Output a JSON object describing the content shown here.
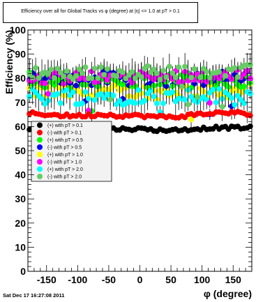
{
  "title": "Efficiency over all for Global Tracks vs φ (degree) at |η| <= 1.0 at pT > 0.1",
  "timestamp": "Sat Dec 17 16:27:08 2011",
  "chart_data": {
    "type": "scatter",
    "xlabel": "φ (degree)",
    "ylabel": "Efficiency (%)",
    "xlim": [
      -180,
      180
    ],
    "ylim": [
      0,
      100
    ],
    "x_ticks": [
      -150,
      -100,
      -50,
      0,
      50,
      100,
      150
    ],
    "y_ticks": [
      0,
      10,
      20,
      30,
      40,
      50,
      60,
      70,
      80,
      90,
      100
    ],
    "grid": false,
    "legend_position": "middle-left",
    "series": [
      {
        "name": "(+) with pT > 0.1",
        "color": "#000000",
        "marker": "circle",
        "mean": 59.2,
        "x": [
          -180,
          -150,
          -120,
          -90,
          -60,
          -30,
          0,
          30,
          60,
          90,
          120,
          150,
          180
        ],
        "values": [
          59,
          59,
          59,
          59.5,
          59,
          59,
          59,
          58.5,
          58.5,
          59,
          59.5,
          59.5,
          59.5
        ]
      },
      {
        "name": "(-) with pT > 0.1",
        "color": "#ff0000",
        "marker": "circle",
        "mean": 64.7,
        "x": [
          -180,
          -150,
          -120,
          -90,
          -60,
          -30,
          0,
          30,
          60,
          90,
          120,
          150,
          180
        ],
        "values": [
          65.5,
          65,
          64.5,
          64.5,
          65,
          64.5,
          64.5,
          64,
          64,
          65,
          65.5,
          66,
          64.5
        ]
      },
      {
        "name": "(+) with pT > 0.5",
        "color": "#00ff00",
        "marker": "circle",
        "mean": 79,
        "x": [
          -180,
          -150,
          -120,
          -90,
          -60,
          -30,
          0,
          30,
          60,
          90,
          120,
          150,
          180
        ],
        "values": [
          80,
          79,
          79,
          78,
          79,
          79,
          79,
          79,
          79,
          79,
          79,
          79,
          79
        ]
      },
      {
        "name": "(-) with pT > 0.5",
        "color": "#0000ff",
        "marker": "circle",
        "mean": 79.5,
        "x": [
          -180,
          -150,
          -120,
          -90,
          -60,
          -30,
          0,
          30,
          60,
          90,
          120,
          150,
          180
        ],
        "values": [
          80,
          79,
          80,
          79,
          80,
          79,
          80,
          80,
          79,
          80,
          80,
          80,
          80
        ]
      },
      {
        "name": "(+) with pT > 1.0",
        "color": "#ffff00",
        "marker": "circle",
        "mean": 74.5,
        "x": [
          -180,
          -150,
          -120,
          -90,
          -60,
          -30,
          0,
          30,
          60,
          90,
          120,
          150,
          180
        ],
        "values": [
          75,
          74,
          74,
          74,
          75,
          74,
          75,
          74,
          75,
          75,
          74,
          75,
          75
        ]
      },
      {
        "name": "(-) with pT > 1.0",
        "color": "#ff00ff",
        "marker": "circle",
        "mean": 80.5,
        "x": [
          -180,
          -150,
          -120,
          -90,
          -60,
          -30,
          0,
          30,
          60,
          90,
          120,
          150,
          180
        ],
        "values": [
          81,
          80,
          80,
          80,
          81,
          80,
          81,
          80,
          81,
          81,
          81,
          81,
          82
        ]
      },
      {
        "name": "(+) with pT > 2.0",
        "color": "#00ffff",
        "marker": "circle",
        "mean": 73,
        "x": [
          -180,
          -150,
          -120,
          -90,
          -60,
          -30,
          0,
          30,
          60,
          90,
          120,
          150,
          180
        ],
        "values": [
          73,
          72,
          73,
          72,
          73,
          72,
          73,
          72,
          73,
          73,
          73,
          72,
          73
        ]
      },
      {
        "name": "(-) with pT > 2.0",
        "color": "#66cc66",
        "marker": "circle",
        "mean": 82.5,
        "x": [
          -180,
          -150,
          -120,
          -90,
          -60,
          -30,
          0,
          30,
          60,
          90,
          120,
          150,
          180
        ],
        "values": [
          83,
          82,
          82,
          82,
          83,
          82,
          83,
          82,
          83,
          83,
          83,
          82,
          83
        ]
      }
    ]
  }
}
